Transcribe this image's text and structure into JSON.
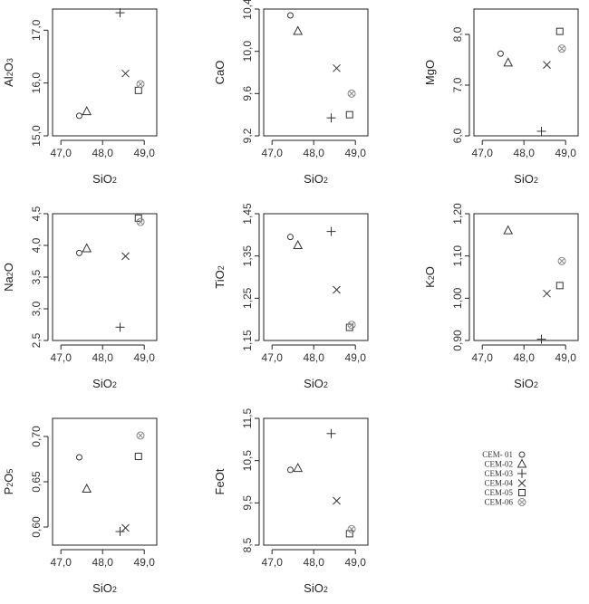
{
  "chart_data": [
    {
      "type": "scatter",
      "xlabel": "SiO2",
      "ylabel": "Al2O3",
      "xlim": [
        46.8,
        49.3
      ],
      "ylim": [
        15.0,
        17.4
      ],
      "xticks": [
        "47,0",
        "48,0",
        "49,0"
      ],
      "yticks": [
        "15,0",
        "16,0",
        "17,0"
      ],
      "points": [
        {
          "series": "CEM- 01",
          "x": 47.44,
          "y": 15.38
        },
        {
          "series": "CEM-02",
          "x": 47.62,
          "y": 15.46
        },
        {
          "series": "CEM-03",
          "x": 48.42,
          "y": 17.33
        },
        {
          "series": "CEM-04",
          "x": 48.55,
          "y": 16.18
        },
        {
          "series": "CEM-05",
          "x": 48.86,
          "y": 15.86
        },
        {
          "series": "CEM-06",
          "x": 48.91,
          "y": 15.98
        }
      ]
    },
    {
      "type": "scatter",
      "xlabel": "SiO2",
      "ylabel": "CaO",
      "xlim": [
        46.8,
        49.3
      ],
      "ylim": [
        9.2,
        10.4
      ],
      "xticks": [
        "47,0",
        "48,0",
        "49,0"
      ],
      "yticks": [
        "9,2",
        "9,6",
        "10,0",
        "10,4"
      ],
      "points": [
        {
          "series": "CEM- 01",
          "x": 47.44,
          "y": 10.34
        },
        {
          "series": "CEM-02",
          "x": 47.62,
          "y": 10.19
        },
        {
          "series": "CEM-03",
          "x": 48.42,
          "y": 9.37
        },
        {
          "series": "CEM-04",
          "x": 48.55,
          "y": 9.84
        },
        {
          "series": "CEM-05",
          "x": 48.86,
          "y": 9.4
        },
        {
          "series": "CEM-06",
          "x": 48.91,
          "y": 9.6
        }
      ]
    },
    {
      "type": "scatter",
      "xlabel": "SiO2",
      "ylabel": "MgO",
      "xlim": [
        46.8,
        49.3
      ],
      "ylim": [
        6.0,
        8.5
      ],
      "xticks": [
        "47,0",
        "48,0",
        "49,0"
      ],
      "yticks": [
        "6,0",
        "7,0",
        "8,0"
      ],
      "points": [
        {
          "series": "CEM- 01",
          "x": 47.44,
          "y": 7.62
        },
        {
          "series": "CEM-02",
          "x": 47.62,
          "y": 7.44
        },
        {
          "series": "CEM-03",
          "x": 48.42,
          "y": 6.09
        },
        {
          "series": "CEM-04",
          "x": 48.55,
          "y": 7.4
        },
        {
          "series": "CEM-05",
          "x": 48.86,
          "y": 8.06
        },
        {
          "series": "CEM-06",
          "x": 48.91,
          "y": 7.72
        }
      ]
    },
    {
      "type": "scatter",
      "xlabel": "SiO2",
      "ylabel": "Na2O",
      "xlim": [
        46.8,
        49.3
      ],
      "ylim": [
        2.5,
        4.5
      ],
      "xticks": [
        "47,0",
        "48,0",
        "49,0"
      ],
      "yticks": [
        "2,5",
        "3,0",
        "3,5",
        "4,0",
        "4,5"
      ],
      "points": [
        {
          "series": "CEM- 01",
          "x": 47.44,
          "y": 3.88
        },
        {
          "series": "CEM-02",
          "x": 47.62,
          "y": 3.95
        },
        {
          "series": "CEM-03",
          "x": 48.42,
          "y": 2.71
        },
        {
          "series": "CEM-04",
          "x": 48.55,
          "y": 3.83
        },
        {
          "series": "CEM-05",
          "x": 48.86,
          "y": 4.43
        },
        {
          "series": "CEM-06",
          "x": 48.91,
          "y": 4.37
        }
      ]
    },
    {
      "type": "scatter",
      "xlabel": "SiO2",
      "ylabel": "TiO2",
      "xlim": [
        46.8,
        49.3
      ],
      "ylim": [
        1.15,
        1.45
      ],
      "xticks": [
        "47,0",
        "48,0",
        "49,0"
      ],
      "yticks": [
        "1,15",
        "1,25",
        "1,35",
        "1,45"
      ],
      "points": [
        {
          "series": "CEM- 01",
          "x": 47.44,
          "y": 1.395
        },
        {
          "series": "CEM-02",
          "x": 47.62,
          "y": 1.375
        },
        {
          "series": "CEM-03",
          "x": 48.42,
          "y": 1.408
        },
        {
          "series": "CEM-04",
          "x": 48.55,
          "y": 1.27
        },
        {
          "series": "CEM-05",
          "x": 48.86,
          "y": 1.181
        },
        {
          "series": "CEM-06",
          "x": 48.91,
          "y": 1.187
        }
      ]
    },
    {
      "type": "scatter",
      "xlabel": "SiO2",
      "ylabel": "K2O",
      "xlim": [
        46.8,
        49.3
      ],
      "ylim": [
        0.9,
        1.2
      ],
      "xticks": [
        "47,0",
        "48,0",
        "49,0"
      ],
      "yticks": [
        "0,90",
        "1,00",
        "1,10",
        "1,20"
      ],
      "points": [
        {
          "series": "CEM- 01",
          "x": 47.44,
          "y": null
        },
        {
          "series": "CEM-02",
          "x": 47.62,
          "y": 1.16
        },
        {
          "series": "CEM-03",
          "x": 48.42,
          "y": 0.903
        },
        {
          "series": "CEM-04",
          "x": 48.55,
          "y": 1.011
        },
        {
          "series": "CEM-05",
          "x": 48.86,
          "y": 1.03
        },
        {
          "series": "CEM-06",
          "x": 48.91,
          "y": 1.088
        }
      ]
    },
    {
      "type": "scatter",
      "xlabel": "SiO2",
      "ylabel": "P2O5",
      "xlim": [
        46.8,
        49.3
      ],
      "ylim": [
        0.58,
        0.72
      ],
      "xticks": [
        "47,0",
        "48,0",
        "49,0"
      ],
      "yticks": [
        "0,60",
        "0,65",
        "0,70"
      ],
      "points": [
        {
          "series": "CEM- 01",
          "x": 47.44,
          "y": 0.677
        },
        {
          "series": "CEM-02",
          "x": 47.62,
          "y": 0.642
        },
        {
          "series": "CEM-03",
          "x": 48.42,
          "y": 0.595
        },
        {
          "series": "CEM-04",
          "x": 48.55,
          "y": 0.599
        },
        {
          "series": "CEM-05",
          "x": 48.86,
          "y": 0.678
        },
        {
          "series": "CEM-06",
          "x": 48.91,
          "y": 0.701
        }
      ]
    },
    {
      "type": "scatter",
      "xlabel": "SiO2",
      "ylabel": "FeOt",
      "xlim": [
        46.8,
        49.3
      ],
      "ylim": [
        8.5,
        11.5
      ],
      "xticks": [
        "47,0",
        "48,0",
        "49,0"
      ],
      "yticks": [
        "8,5",
        "9,5",
        "10,5",
        "11,5"
      ],
      "points": [
        {
          "series": "CEM- 01",
          "x": 47.44,
          "y": 10.28
        },
        {
          "series": "CEM-02",
          "x": 47.62,
          "y": 10.32
        },
        {
          "series": "CEM-03",
          "x": 48.42,
          "y": 11.14
        },
        {
          "series": "CEM-04",
          "x": 48.55,
          "y": 9.55
        },
        {
          "series": "CEM-05",
          "x": 48.86,
          "y": 8.77
        },
        {
          "series": "CEM-06",
          "x": 48.91,
          "y": 8.88
        }
      ]
    }
  ],
  "legend": {
    "placement": "bottom-right",
    "entries": [
      {
        "label": "CEM- 01",
        "marker": "circle-icon"
      },
      {
        "label": "CEM-02",
        "marker": "triangle-icon"
      },
      {
        "label": "CEM-03",
        "marker": "plus-icon"
      },
      {
        "label": "CEM-04",
        "marker": "cross-icon"
      },
      {
        "label": "CEM-05",
        "marker": "square-icon"
      },
      {
        "label": "CEM-06",
        "marker": "circle-cross-icon"
      }
    ]
  },
  "colors": {
    "marker": "#333333",
    "marker_light": "#888888",
    "axis": "#222222"
  }
}
